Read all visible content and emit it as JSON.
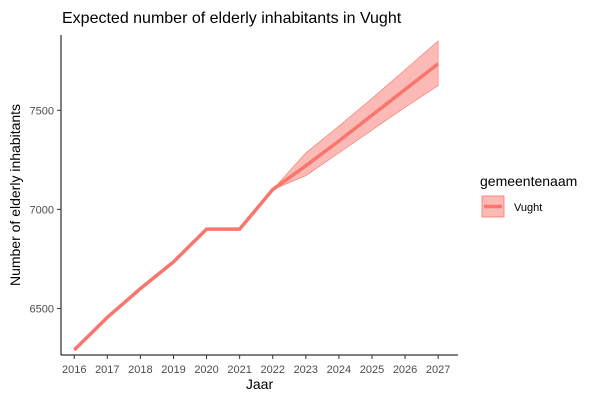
{
  "chart_data": {
    "type": "line",
    "title": "Expected number of elderly inhabitants in Vught",
    "xlabel": "Jaar",
    "ylabel": "Number of elderly inhabitants",
    "x": [
      2016,
      2017,
      2018,
      2019,
      2020,
      2021,
      2022,
      2023,
      2024,
      2025,
      2026,
      2027
    ],
    "xticks": [
      "2016",
      "2017",
      "2018",
      "2019",
      "2020",
      "2021",
      "2022",
      "2023",
      "2024",
      "2025",
      "2026",
      "2027"
    ],
    "yticks": [
      6500,
      7000,
      7500
    ],
    "ytick_labels": [
      "6500",
      "7000",
      "7500"
    ],
    "xlim": [
      2015.6,
      2027.6
    ],
    "ylim": [
      6265,
      7880
    ],
    "grid": false,
    "series": [
      {
        "name": "Vught",
        "values": [
          6290,
          6455,
          6600,
          6735,
          6900,
          6900,
          7100,
          7220,
          7345,
          7475,
          7605,
          7735
        ],
        "lower": [
          6290,
          6455,
          6600,
          6735,
          6900,
          6900,
          7100,
          7170,
          7285,
          7400,
          7515,
          7625
        ],
        "upper": [
          6290,
          6455,
          6600,
          6735,
          6900,
          6900,
          7100,
          7285,
          7420,
          7560,
          7705,
          7850
        ],
        "color": "#F8766D",
        "ribbon_color": "#F8766D"
      }
    ],
    "legend": {
      "title": "gemeentenaam",
      "position": "right",
      "entries": [
        "Vught"
      ]
    }
  }
}
